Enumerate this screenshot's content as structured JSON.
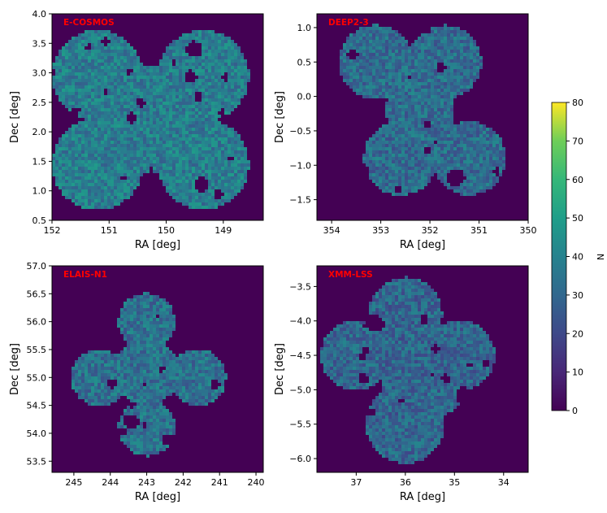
{
  "chart_data": [
    {
      "type": "heatmap",
      "field_label": "E-COSMOS",
      "xlabel": "RA [deg]",
      "ylabel": "Dec [deg]",
      "xlim": [
        152.0,
        148.3
      ],
      "ylim": [
        0.5,
        4.0
      ],
      "xticks": [
        "152",
        "151",
        "150",
        "149"
      ],
      "yticks": [
        "0.5",
        "1.0",
        "1.5",
        "2.0",
        "2.5",
        "3.0",
        "3.5",
        "4.0"
      ],
      "footprint": {
        "centers": [
          [
            151.2,
            2.95
          ],
          [
            149.35,
            2.95
          ],
          [
            151.2,
            1.45
          ],
          [
            149.35,
            1.45
          ],
          [
            150.3,
            2.2
          ]
        ],
        "radii": [
          0.8,
          0.8,
          0.8,
          0.8,
          0.95
        ]
      },
      "median_N": 38
    },
    {
      "type": "heatmap",
      "field_label": "DEEP2-3",
      "xlabel": "RA [deg]",
      "ylabel": "Dec [deg]",
      "xlim": [
        354.3,
        350.0
      ],
      "ylim": [
        -1.8,
        1.2
      ],
      "xticks": [
        "354",
        "353",
        "352",
        "351",
        "350"
      ],
      "yticks": [
        "-1.5",
        "-1.0",
        "-0.5",
        "0.0",
        "0.5",
        "1.0"
      ],
      "footprint": {
        "centers": [
          [
            353.1,
            0.5
          ],
          [
            351.7,
            0.5
          ],
          [
            352.6,
            -0.9
          ],
          [
            351.2,
            -0.9
          ],
          [
            352.2,
            -0.2
          ]
        ],
        "radii": [
          0.75,
          0.75,
          0.75,
          0.75,
          0.7
        ]
      },
      "median_N": 32
    },
    {
      "type": "heatmap",
      "field_label": "ELAIS-N1",
      "xlabel": "RA [deg]",
      "ylabel": "Dec [deg]",
      "xlim": [
        245.6,
        239.8
      ],
      "ylim": [
        53.3,
        57.0
      ],
      "xticks": [
        "245",
        "244",
        "243",
        "242",
        "241",
        "240"
      ],
      "yticks": [
        "53.5",
        "54.0",
        "54.5",
        "55.0",
        "55.5",
        "56.0",
        "56.5",
        "57.0"
      ],
      "footprint": {
        "centers": [
          [
            243.0,
            56.0
          ],
          [
            244.3,
            55.0
          ],
          [
            241.6,
            55.0
          ],
          [
            243.0,
            54.1
          ],
          [
            243.0,
            55.1
          ]
        ],
        "radii": [
          0.78,
          0.78,
          0.78,
          0.78,
          0.9
        ]
      },
      "median_N": 34
    },
    {
      "type": "heatmap",
      "field_label": "XMM-LSS",
      "xlabel": "RA [deg]",
      "ylabel": "Dec [deg]",
      "xlim": [
        37.8,
        33.5
      ],
      "ylim": [
        -6.2,
        -3.2
      ],
      "xticks": [
        "37",
        "36",
        "35",
        "34"
      ],
      "yticks": [
        "-6.0",
        "-5.5",
        "-5.0",
        "-4.5",
        "-4.0",
        "-3.5"
      ],
      "footprint": {
        "centers": [
          [
            36.0,
            -3.9
          ],
          [
            34.9,
            -4.5
          ],
          [
            37.0,
            -4.5
          ],
          [
            36.0,
            -5.5
          ],
          [
            35.6,
            -4.8
          ]
        ],
        "radii": [
          0.75,
          0.72,
          0.72,
          0.8,
          0.9
        ]
      },
      "median_N": 30
    }
  ],
  "colorbar": {
    "label": "N",
    "range": [
      0,
      80
    ],
    "ticks": [
      "0",
      "10",
      "20",
      "30",
      "40",
      "50",
      "60",
      "70",
      "80"
    ],
    "colormap": "viridis"
  },
  "colors": {
    "empty": "#440154",
    "label": "#ff0000"
  }
}
